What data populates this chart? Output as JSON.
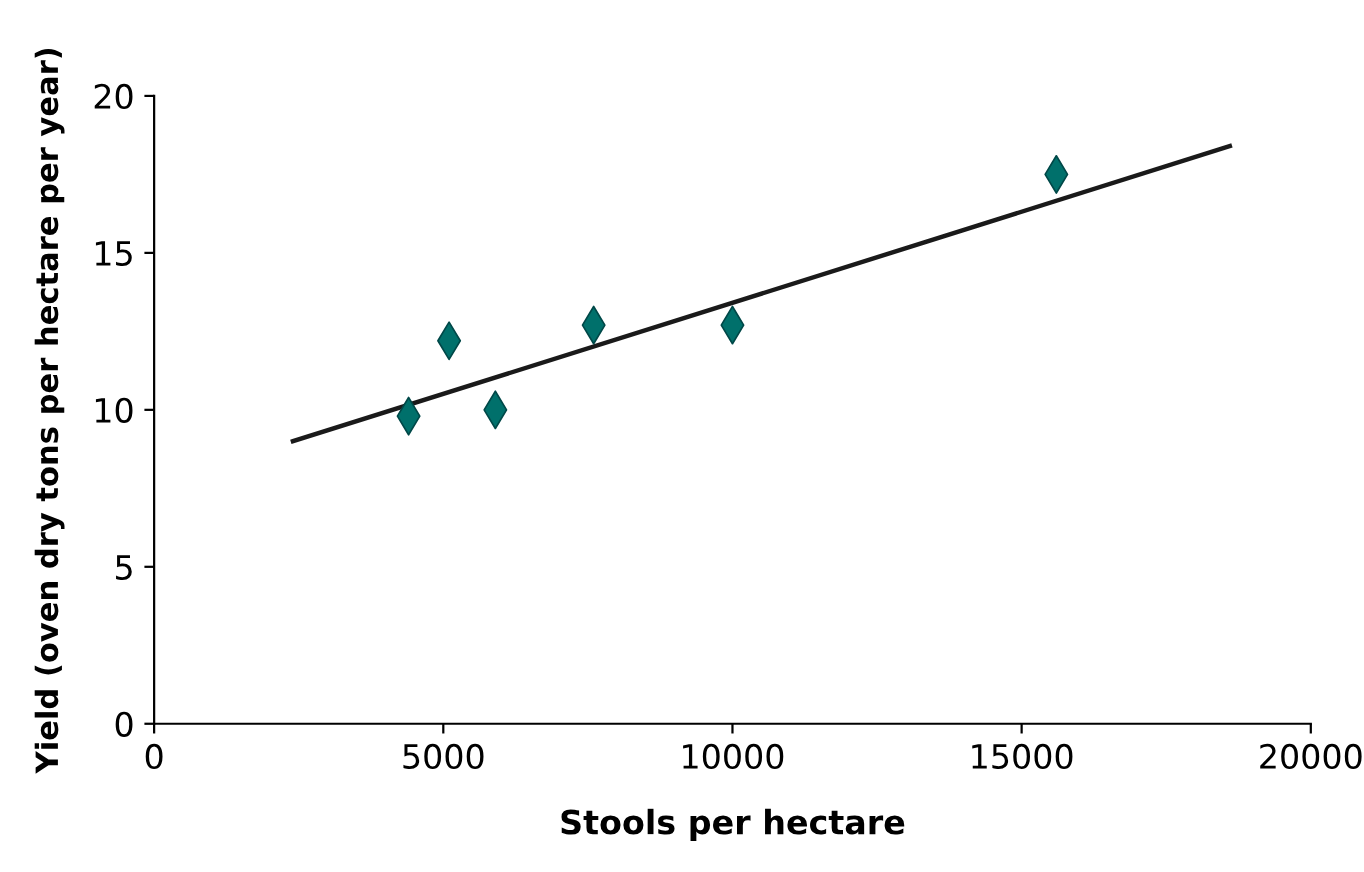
{
  "chart_data": {
    "type": "scatter",
    "xlabel": "Stools per hectare",
    "ylabel": "Yield (oven dry tons per hectare per year)",
    "xlim": [
      0,
      20000
    ],
    "xticks": [
      0,
      5000,
      10000,
      15000,
      20000
    ],
    "ylim": [
      0,
      20
    ],
    "yticks": [
      0,
      5,
      10,
      15,
      20
    ],
    "grid": false,
    "legend": false,
    "series": [
      {
        "color": "#00706b",
        "marker": "diamond",
        "x": [
          4400,
          5100,
          5900,
          7600,
          10000,
          15600
        ],
        "values": [
          9.8,
          12.2,
          10.0,
          12.7,
          12.7,
          17.5
        ]
      },
      {
        "type": "line",
        "color": "#1a1a1a",
        "marker": "none",
        "line_style": "solid",
        "x": [
          2400,
          18600
        ],
        "values": [
          9.0,
          18.4
        ]
      }
    ]
  }
}
